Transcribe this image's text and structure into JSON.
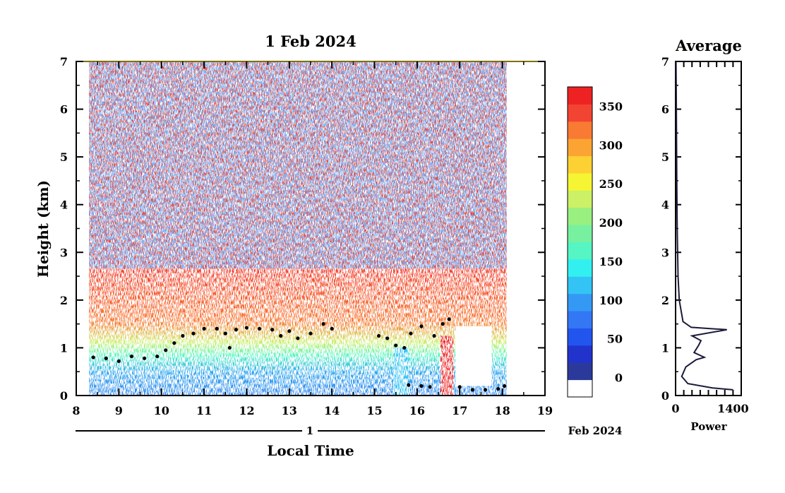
{
  "chart_data": [
    {
      "type": "heatmap",
      "title": "1 Feb 2024",
      "xlabel": "Local Time",
      "ylabel": "Height (km)",
      "xlim": [
        8,
        19
      ],
      "ylim": [
        0,
        7
      ],
      "x_ticks": [
        "8",
        "9",
        "10",
        "11",
        "12",
        "13",
        "14",
        "15",
        "16",
        "17",
        "18",
        "19"
      ],
      "y_ticks": [
        "0",
        "1",
        "2",
        "3",
        "4",
        "5",
        "6",
        "7"
      ],
      "date_row": {
        "day": "1",
        "month_year": "Feb 2024"
      },
      "data_extent_x": [
        8.3,
        18.1
      ],
      "colorbar": {
        "ticks": [
          "0",
          "50",
          "100",
          "150",
          "200",
          "250",
          "300",
          "350"
        ],
        "tick_values": [
          0,
          50,
          100,
          150,
          200,
          250,
          300,
          350
        ],
        "range": [
          -25,
          375
        ],
        "colors": [
          "#ffffff",
          "#2b3a9a",
          "#2233cc",
          "#2255ee",
          "#3377f5",
          "#3399f5",
          "#33c4f5",
          "#33f0f0",
          "#55f5c4",
          "#77f0a0",
          "#99f080",
          "#ccf066",
          "#f5f533",
          "#fdd033",
          "#fca433",
          "#f97a33",
          "#f24433",
          "#ee2222"
        ]
      },
      "boundary_layer": [
        {
          "x": 8.4,
          "y": 0.8
        },
        {
          "x": 8.7,
          "y": 0.78
        },
        {
          "x": 9.0,
          "y": 0.72
        },
        {
          "x": 9.3,
          "y": 0.82
        },
        {
          "x": 9.6,
          "y": 0.78
        },
        {
          "x": 9.9,
          "y": 0.82
        },
        {
          "x": 10.1,
          "y": 0.95
        },
        {
          "x": 10.3,
          "y": 1.1
        },
        {
          "x": 10.5,
          "y": 1.25
        },
        {
          "x": 10.75,
          "y": 1.3
        },
        {
          "x": 11.0,
          "y": 1.4
        },
        {
          "x": 11.3,
          "y": 1.4
        },
        {
          "x": 11.5,
          "y": 1.3
        },
        {
          "x": 11.6,
          "y": 1.0
        },
        {
          "x": 11.75,
          "y": 1.38
        },
        {
          "x": 12.0,
          "y": 1.42
        },
        {
          "x": 12.3,
          "y": 1.4
        },
        {
          "x": 12.6,
          "y": 1.38
        },
        {
          "x": 12.8,
          "y": 1.25
        },
        {
          "x": 13.0,
          "y": 1.35
        },
        {
          "x": 13.2,
          "y": 1.2
        },
        {
          "x": 13.5,
          "y": 1.3
        },
        {
          "x": 13.8,
          "y": 1.5
        },
        {
          "x": 14.0,
          "y": 1.4
        },
        {
          "x": 15.1,
          "y": 1.25
        },
        {
          "x": 15.3,
          "y": 1.2
        },
        {
          "x": 15.5,
          "y": 1.05
        },
        {
          "x": 15.7,
          "y": 1.0
        },
        {
          "x": 15.85,
          "y": 1.3
        },
        {
          "x": 16.1,
          "y": 1.45
        },
        {
          "x": 16.4,
          "y": 1.25
        },
        {
          "x": 16.6,
          "y": 1.5
        },
        {
          "x": 16.75,
          "y": 1.6
        }
      ],
      "surface_layer": [
        {
          "x": 15.8,
          "y": 0.22
        },
        {
          "x": 16.1,
          "y": 0.2
        },
        {
          "x": 16.3,
          "y": 0.18
        },
        {
          "x": 17.0,
          "y": 0.18
        },
        {
          "x": 17.3,
          "y": 0.12
        },
        {
          "x": 17.6,
          "y": 0.12
        },
        {
          "x": 17.9,
          "y": 0.14
        },
        {
          "x": 18.05,
          "y": 0.2
        }
      ]
    },
    {
      "type": "line",
      "title": "Average",
      "xlabel": "Power",
      "xlim": [
        0,
        1600
      ],
      "ylim": [
        0,
        7
      ],
      "x_ticks": [
        "0",
        "1400"
      ],
      "y_ticks": [
        "0",
        "1",
        "2",
        "3",
        "4",
        "5",
        "6",
        "7"
      ],
      "profile": [
        {
          "x": 1400,
          "y": 0.12
        },
        {
          "x": 900,
          "y": 0.16
        },
        {
          "x": 300,
          "y": 0.25
        },
        {
          "x": 150,
          "y": 0.4
        },
        {
          "x": 250,
          "y": 0.6
        },
        {
          "x": 500,
          "y": 0.75
        },
        {
          "x": 700,
          "y": 0.8
        },
        {
          "x": 450,
          "y": 0.9
        },
        {
          "x": 560,
          "y": 1.05
        },
        {
          "x": 620,
          "y": 1.15
        },
        {
          "x": 400,
          "y": 1.25
        },
        {
          "x": 1250,
          "y": 1.38
        },
        {
          "x": 380,
          "y": 1.43
        },
        {
          "x": 180,
          "y": 1.55
        },
        {
          "x": 90,
          "y": 2.0
        },
        {
          "x": 60,
          "y": 2.5
        },
        {
          "x": 40,
          "y": 3.5
        },
        {
          "x": 30,
          "y": 4.5
        },
        {
          "x": 22,
          "y": 5.5
        },
        {
          "x": 15,
          "y": 6.5
        },
        {
          "x": 10,
          "y": 7.0
        }
      ]
    }
  ]
}
